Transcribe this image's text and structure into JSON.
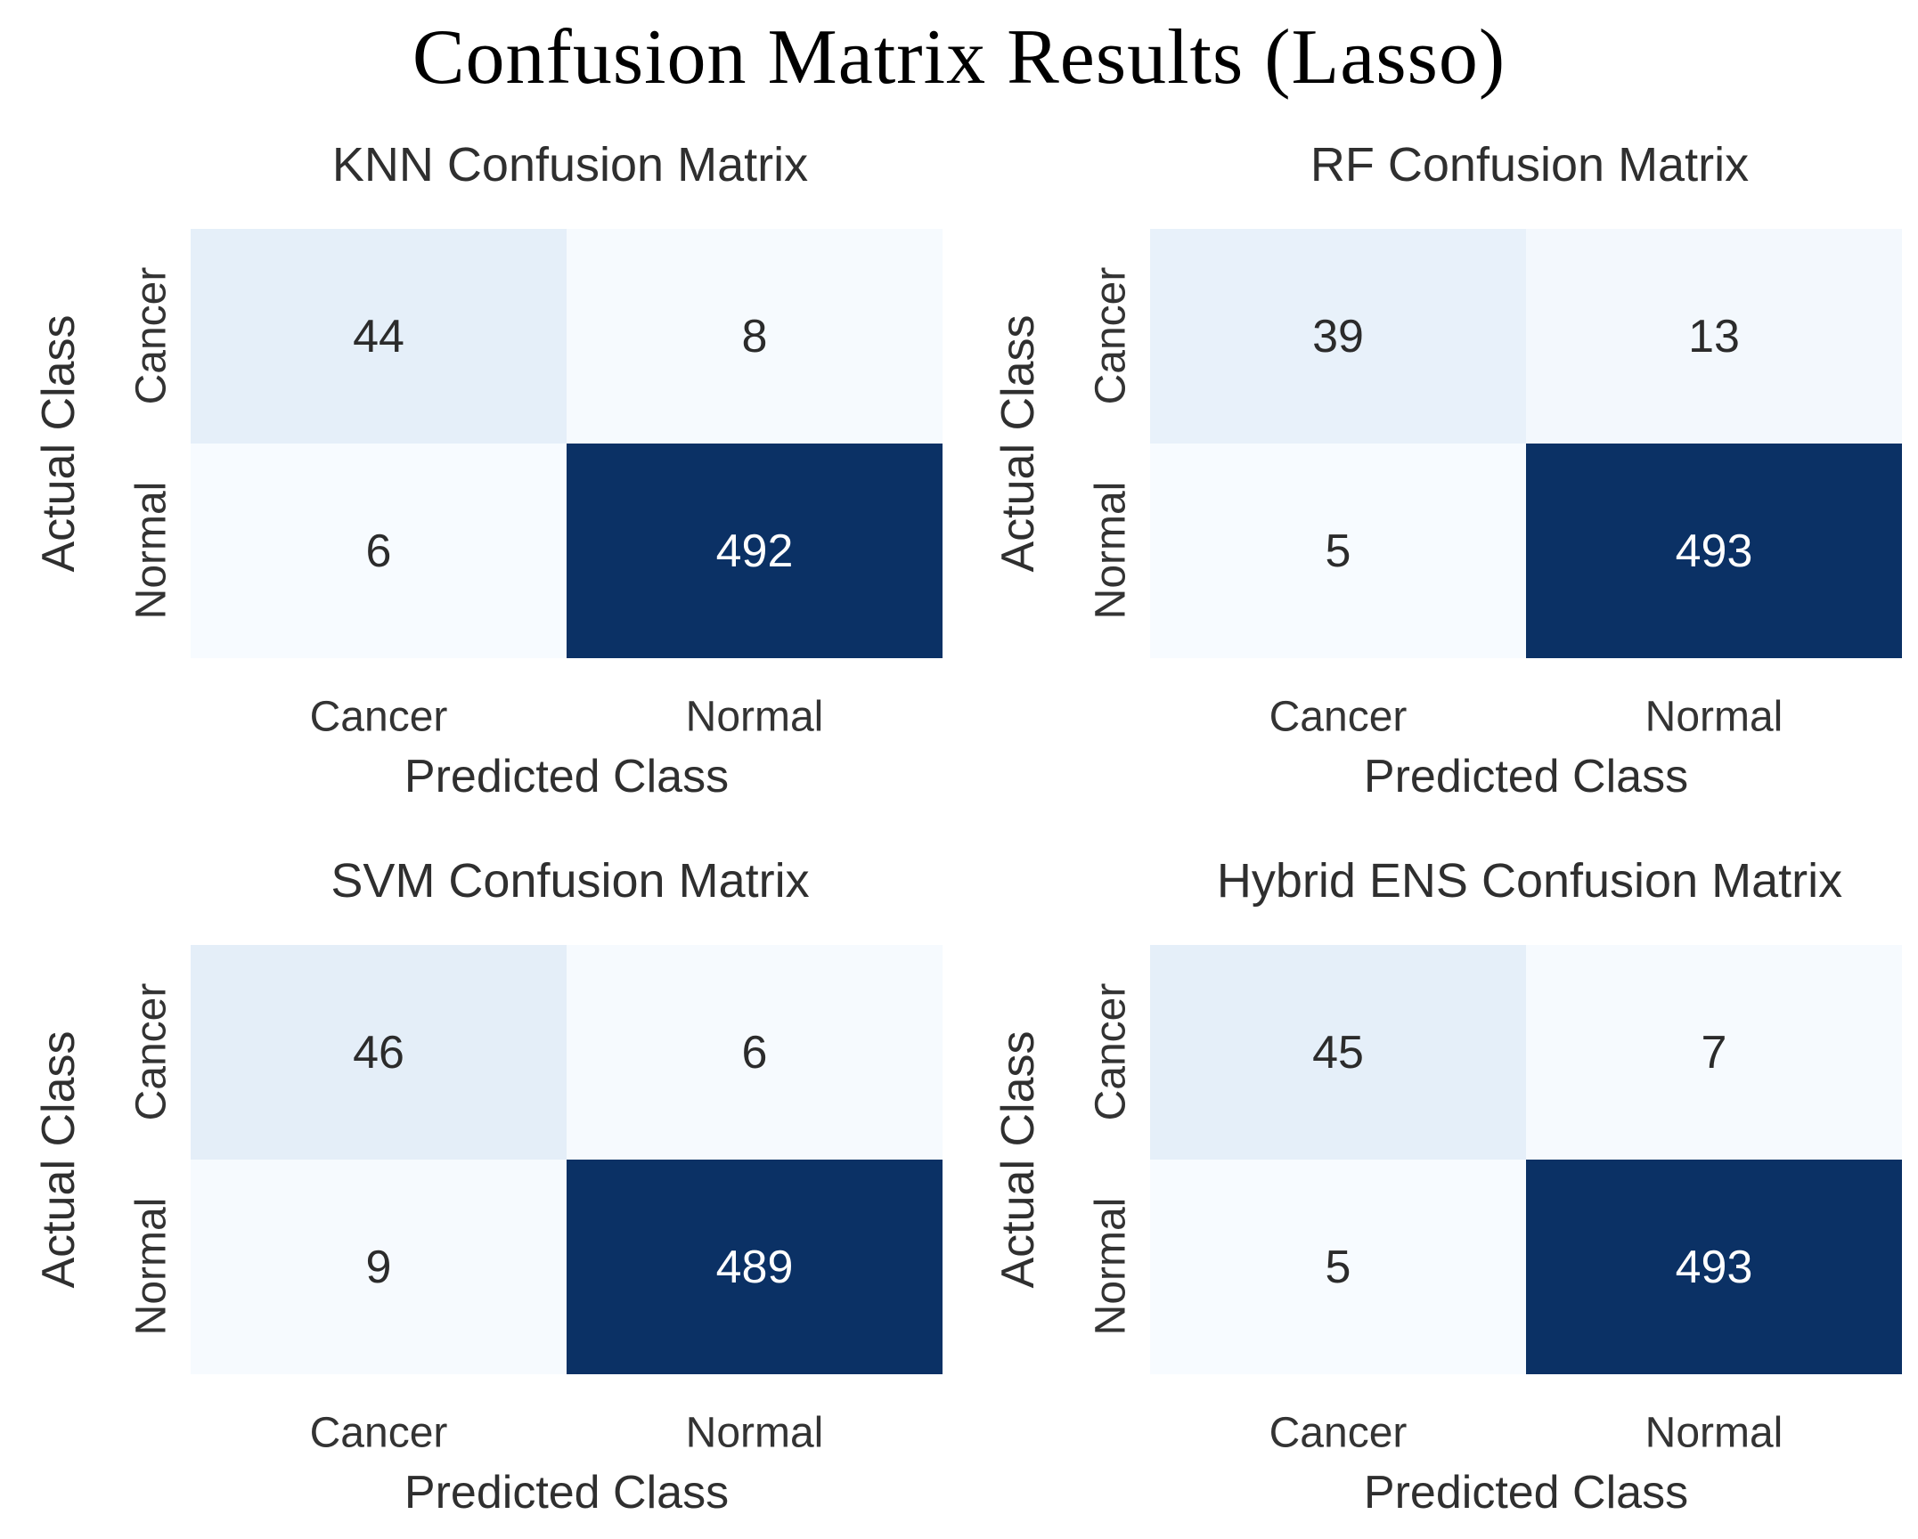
{
  "title": "Confusion Matrix Results (Lasso)",
  "colors": {
    "background": "#ffffff",
    "title_text": "#000000",
    "axis_text": "#333333",
    "heatmap_min": "#f7fbff",
    "heatmap_max": "#0b3165"
  },
  "chart_data": [
    {
      "type": "heatmap",
      "title": "KNN Confusion Matrix",
      "xlabel": "Predicted Class",
      "ylabel": "Actual Class",
      "x_categories": [
        "Cancer",
        "Normal"
      ],
      "y_categories": [
        "Cancer",
        "Normal"
      ],
      "values": [
        [
          44,
          8
        ],
        [
          6,
          492
        ]
      ],
      "cell_colors": [
        [
          "#e5eff9",
          "#f6fafe"
        ],
        [
          "#f7fbff",
          "#0b3165"
        ]
      ],
      "text_colors": [
        [
          "#2b2b2b",
          "#2b2b2b"
        ],
        [
          "#2b2b2b",
          "#ffffff"
        ]
      ]
    },
    {
      "type": "heatmap",
      "title": "RF Confusion Matrix",
      "xlabel": "Predicted Class",
      "ylabel": "Actual Class",
      "x_categories": [
        "Cancer",
        "Normal"
      ],
      "y_categories": [
        "Cancer",
        "Normal"
      ],
      "values": [
        [
          39,
          13
        ],
        [
          5,
          493
        ]
      ],
      "cell_colors": [
        [
          "#e8f1fa",
          "#f3f8fd"
        ],
        [
          "#f7fbff",
          "#0b3165"
        ]
      ],
      "text_colors": [
        [
          "#2b2b2b",
          "#2b2b2b"
        ],
        [
          "#2b2b2b",
          "#ffffff"
        ]
      ]
    },
    {
      "type": "heatmap",
      "title": "SVM Confusion Matrix",
      "xlabel": "Predicted Class",
      "ylabel": "Actual Class",
      "x_categories": [
        "Cancer",
        "Normal"
      ],
      "y_categories": [
        "Cancer",
        "Normal"
      ],
      "values": [
        [
          46,
          6
        ],
        [
          9,
          489
        ]
      ],
      "cell_colors": [
        [
          "#e4eef8",
          "#f6fafe"
        ],
        [
          "#f6fafe",
          "#0b3165"
        ]
      ],
      "text_colors": [
        [
          "#2b2b2b",
          "#2b2b2b"
        ],
        [
          "#2b2b2b",
          "#ffffff"
        ]
      ]
    },
    {
      "type": "heatmap",
      "title": "Hybrid ENS Confusion Matrix",
      "xlabel": "Predicted Class",
      "ylabel": "Actual Class",
      "x_categories": [
        "Cancer",
        "Normal"
      ],
      "y_categories": [
        "Cancer",
        "Normal"
      ],
      "values": [
        [
          45,
          7
        ],
        [
          5,
          493
        ]
      ],
      "cell_colors": [
        [
          "#e5eff9",
          "#f6fafe"
        ],
        [
          "#f7fbff",
          "#0b3165"
        ]
      ],
      "text_colors": [
        [
          "#2b2b2b",
          "#2b2b2b"
        ],
        [
          "#2b2b2b",
          "#ffffff"
        ]
      ]
    }
  ]
}
